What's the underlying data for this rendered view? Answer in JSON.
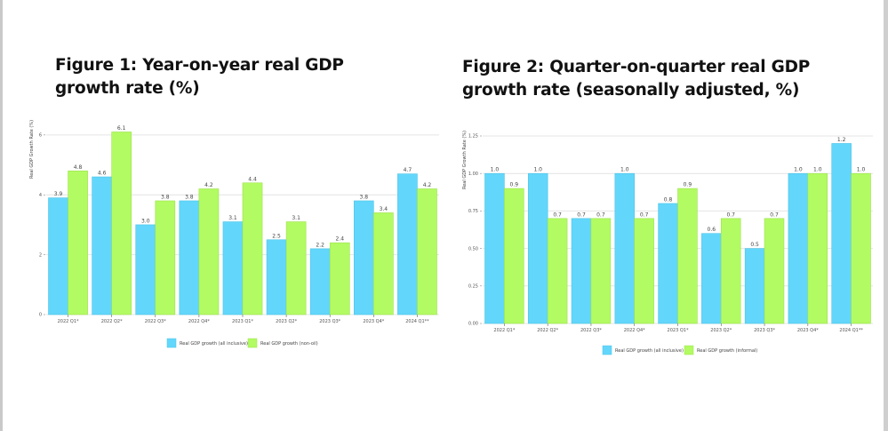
{
  "figure1": {
    "title": "Figure 1: Year-on-year real GDP growth rate (%)"
  },
  "figure2": {
    "title": "Figure 2: Quarter-on-quarter real GDP growth rate (seasonally adjusted, %)"
  },
  "colors": {
    "series_a": "#62d7fb",
    "series_b": "#b2fb62"
  },
  "chart_data": [
    {
      "type": "bar",
      "title": "Figure 1: Year-on-year real GDP growth rate (%)",
      "xlabel": "",
      "ylabel": "Real GDP Growth Rate (%)",
      "ylim": [
        0,
        6.5
      ],
      "yticks": [
        0,
        2,
        4,
        6
      ],
      "ytick_labels": [
        "0",
        "2",
        "4",
        "6"
      ],
      "grid": true,
      "legend_position": "bottom",
      "categories": [
        "2022 Q1*",
        "2022 Q2*",
        "2022 Q3*",
        "2022 Q4*",
        "2023 Q1*",
        "2023 Q2*",
        "2023 Q3*",
        "2023 Q4*",
        "2024 Q1**"
      ],
      "series": [
        {
          "name": "Real GDP growth (all inclusive)",
          "values": [
            3.9,
            4.6,
            3.0,
            3.8,
            3.1,
            2.5,
            2.2,
            3.8,
            4.7
          ],
          "labels": [
            "3.9",
            "4.6",
            "3.0",
            "3.8",
            "3.1",
            "2.5",
            "2.2",
            "3.8",
            "4.7"
          ]
        },
        {
          "name": "Real GDP growth (non-oil)",
          "values": [
            4.8,
            6.1,
            3.8,
            4.2,
            4.4,
            3.1,
            2.4,
            3.4,
            4.2
          ],
          "labels": [
            "4.8",
            "6.1",
            "3.8",
            "4.2",
            "4.4",
            "3.1",
            "2.4",
            "3.4",
            "4.2"
          ]
        }
      ]
    },
    {
      "type": "bar",
      "title": "Figure 2: Quarter-on-quarter real GDP growth rate (seasonally adjusted, %)",
      "xlabel": "",
      "ylabel": "Real GDP Growth Rate (%)",
      "ylim": [
        0,
        1.25
      ],
      "yticks": [
        0,
        0.25,
        0.5,
        0.75,
        1.0,
        1.25
      ],
      "ytick_labels": [
        "0.00",
        "0.25",
        "0.50",
        "0.75",
        "1.00",
        "1.25"
      ],
      "grid": true,
      "legend_position": "bottom",
      "categories": [
        "2022 Q1*",
        "2022 Q2*",
        "2022 Q3*",
        "2022 Q4*",
        "2023 Q1*",
        "2023 Q2*",
        "2023 Q3*",
        "2023 Q4*",
        "2024 Q1**"
      ],
      "series": [
        {
          "name": "Real GDP growth (all inclusive)",
          "values": [
            1.0,
            1.0,
            0.7,
            1.0,
            0.8,
            0.6,
            0.5,
            1.0,
            1.2
          ],
          "labels": [
            "1.0",
            "1.0",
            "0.7",
            "1.0",
            "0.8",
            "0.6",
            "0.5",
            "1.0",
            "1.2"
          ]
        },
        {
          "name": "Real GDP growth (informal)",
          "values": [
            0.9,
            0.7,
            0.7,
            0.7,
            0.9,
            0.7,
            0.7,
            1.0,
            1.0
          ],
          "labels": [
            "0.9",
            "0.7",
            "0.7",
            "0.7",
            "0.9",
            "0.7",
            "0.7",
            "1.0",
            "1.0"
          ]
        }
      ]
    }
  ]
}
